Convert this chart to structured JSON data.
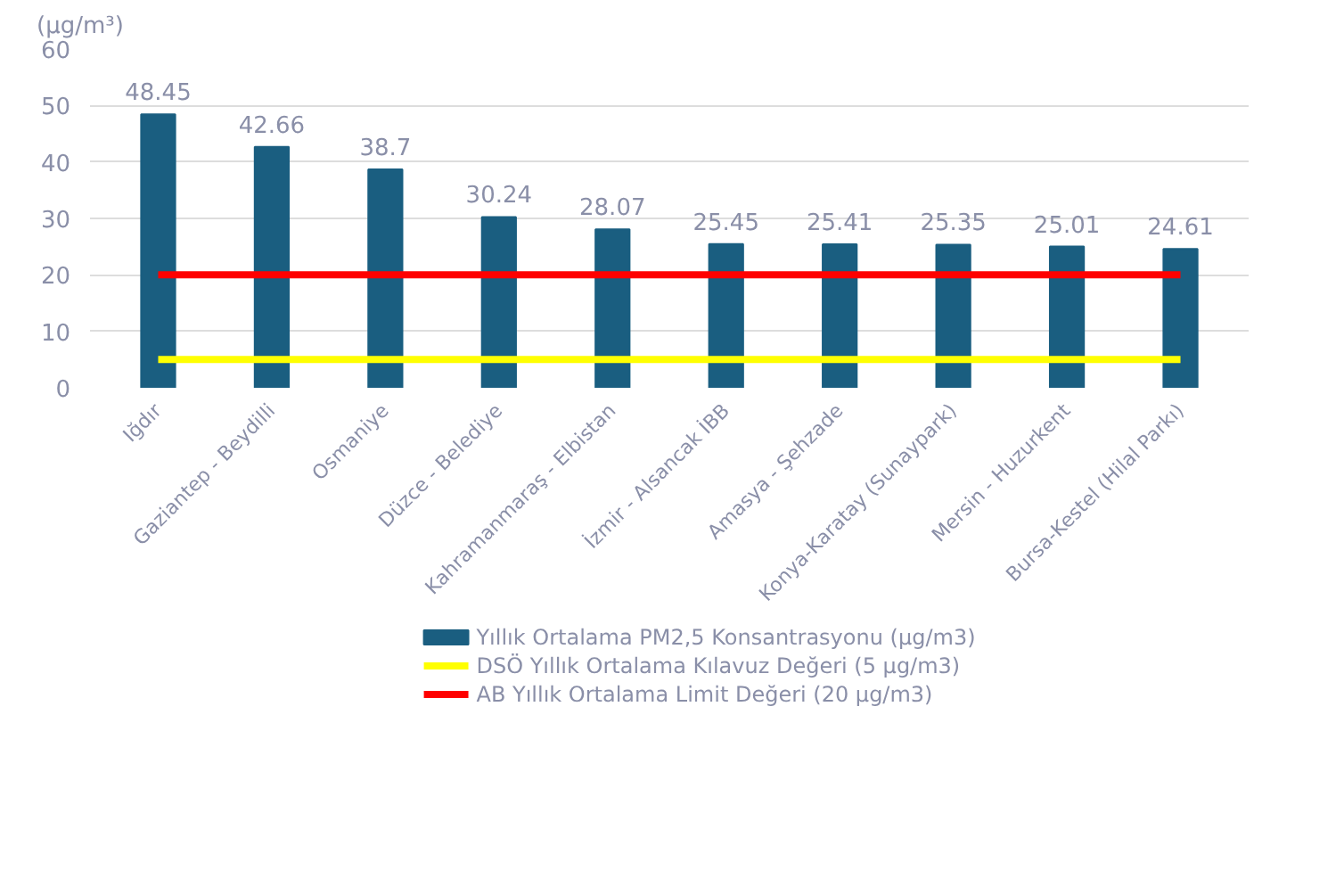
{
  "chart_data": {
    "type": "bar",
    "ylabel": "(µg/m³)",
    "categories": [
      "Iğdır",
      "Gaziantep - Beydilli",
      "Osmaniye",
      "Düzce - Belediye",
      "Kahramanmaraş - Elbistan",
      "İzmir - Alsancak İBB",
      "Amasya - Şehzade",
      "Konya-Karatay (Sunaypark)",
      "Mersin - Huzurkent",
      "Bursa-Kestel (Hilal Parkı)"
    ],
    "series": [
      {
        "name": "Yıllık Ortalama PM2,5 Konsantrasyonu (µg/m3)",
        "color": "#1a5e80",
        "values": [
          48.45,
          42.66,
          38.7,
          30.24,
          28.07,
          25.45,
          25.41,
          25.35,
          25.01,
          24.61
        ],
        "data_labels": true
      },
      {
        "name": "DSÖ Yıllık Ortalama Kılavuz Değeri (5 µg/m3)",
        "type": "line",
        "color": "#ffff00",
        "values": [
          5,
          5,
          5,
          5,
          5,
          5,
          5,
          5,
          5,
          5
        ]
      },
      {
        "name": "AB Yıllık Ortalama Limit Değeri (20 µg/m3)",
        "type": "line",
        "color": "#ff0000",
        "values": [
          20,
          20,
          20,
          20,
          20,
          20,
          20,
          20,
          20,
          20
        ]
      }
    ],
    "ylim": [
      0,
      60
    ],
    "yticks": [
      0,
      10,
      20,
      30,
      40,
      50,
      60
    ],
    "grid": "y",
    "legend": "bottom",
    "marker": "none",
    "line_style": "solid"
  }
}
